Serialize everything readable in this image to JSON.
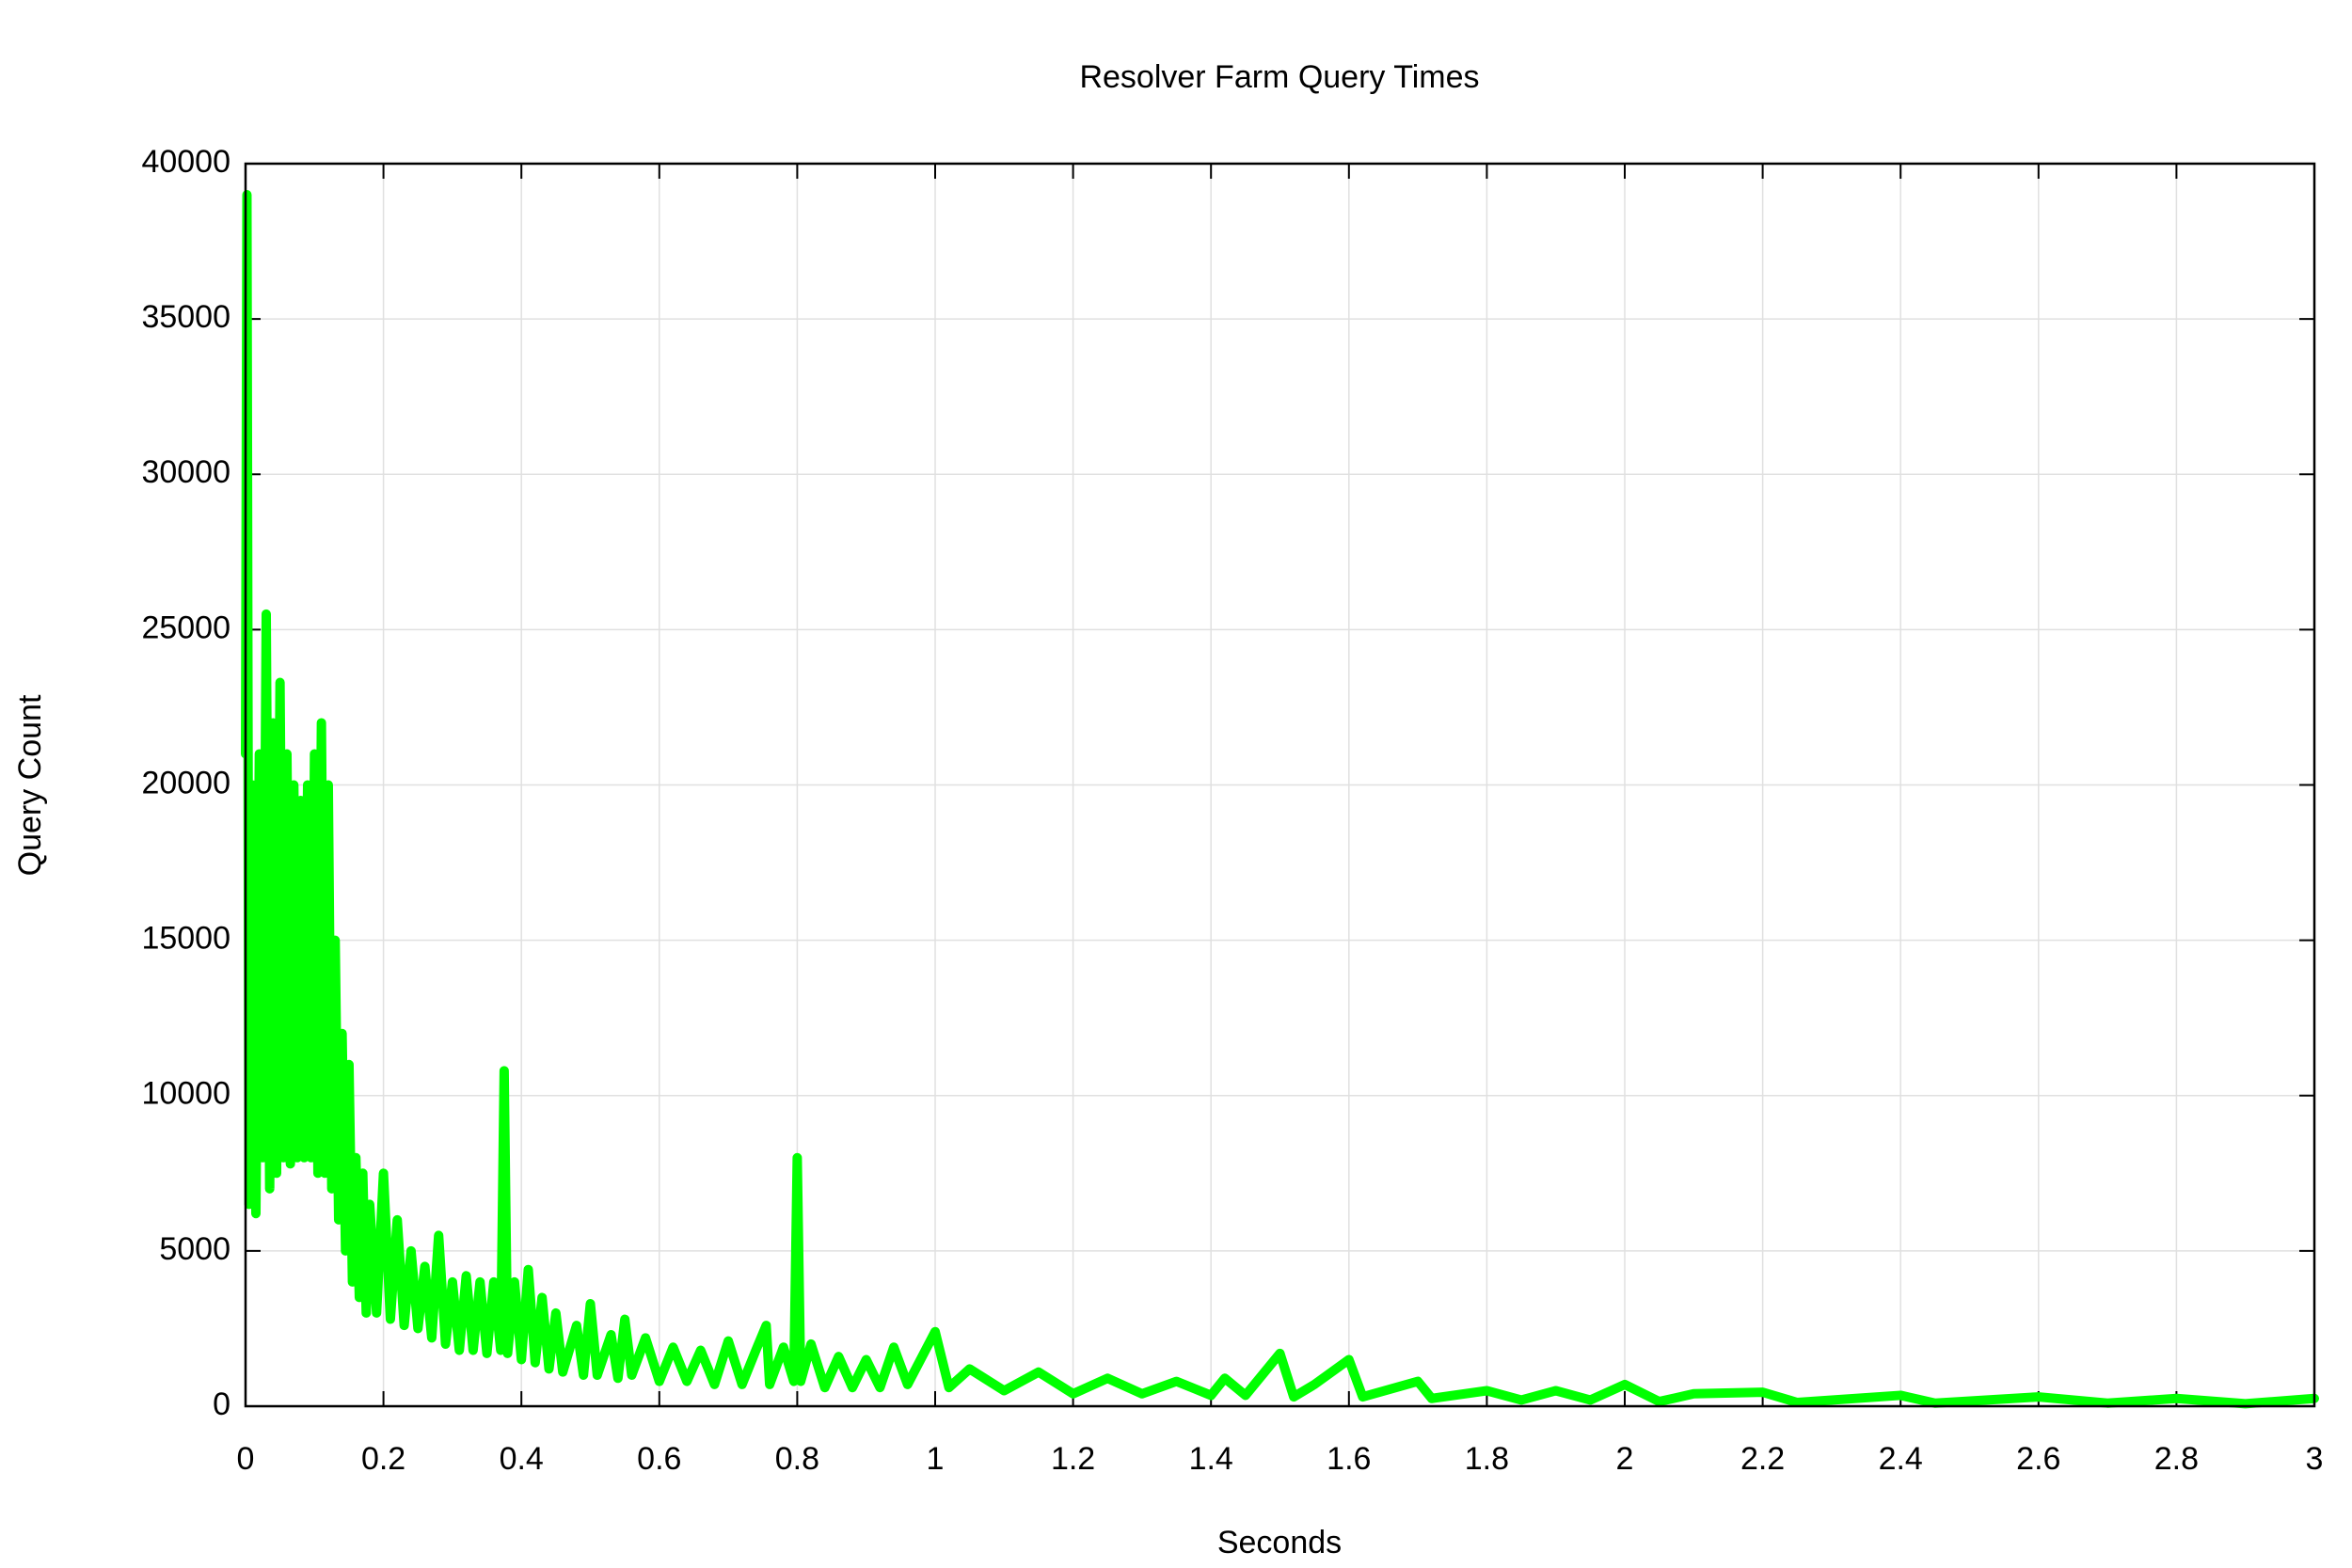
{
  "chart_data": {
    "type": "line",
    "title": "Resolver Farm Query Times",
    "x_label": "Seconds",
    "y_label": "Query Count",
    "x": [
      0,
      0.002,
      0.005,
      0.01,
      0.015,
      0.02,
      0.025,
      0.03,
      0.035,
      0.04,
      0.045,
      0.05,
      0.055,
      0.06,
      0.065,
      0.07,
      0.075,
      0.08,
      0.085,
      0.09,
      0.095,
      0.1,
      0.105,
      0.11,
      0.115,
      0.12,
      0.125,
      0.13,
      0.135,
      0.14,
      0.145,
      0.15,
      0.155,
      0.16,
      0.165,
      0.17,
      0.175,
      0.18,
      0.19,
      0.2,
      0.21,
      0.22,
      0.23,
      0.24,
      0.25,
      0.26,
      0.27,
      0.28,
      0.29,
      0.3,
      0.31,
      0.32,
      0.33,
      0.34,
      0.35,
      0.36,
      0.37,
      0.375,
      0.38,
      0.39,
      0.4,
      0.41,
      0.42,
      0.43,
      0.44,
      0.45,
      0.46,
      0.48,
      0.49,
      0.5,
      0.51,
      0.53,
      0.54,
      0.55,
      0.56,
      0.58,
      0.6,
      0.62,
      0.64,
      0.66,
      0.68,
      0.7,
      0.72,
      0.74,
      0.755,
      0.76,
      0.78,
      0.795,
      0.8,
      0.805,
      0.82,
      0.84,
      0.86,
      0.88,
      0.9,
      0.92,
      0.94,
      0.96,
      1.0,
      1.02,
      1.05,
      1.1,
      1.15,
      1.2,
      1.25,
      1.3,
      1.35,
      1.4,
      1.42,
      1.45,
      1.5,
      1.52,
      1.55,
      1.6,
      1.62,
      1.7,
      1.72,
      1.8,
      1.85,
      1.9,
      1.95,
      2.0,
      2.05,
      2.1,
      2.2,
      2.25,
      2.4,
      2.45,
      2.6,
      2.7,
      2.8,
      2.9,
      3.0
    ],
    "values": [
      21000,
      39000,
      6500,
      20000,
      6200,
      21000,
      8000,
      25500,
      7000,
      22000,
      7500,
      23300,
      8000,
      21000,
      7800,
      20000,
      8000,
      19500,
      8000,
      20000,
      8000,
      21000,
      7500,
      22000,
      7500,
      20000,
      7000,
      15000,
      6000,
      12000,
      5000,
      11000,
      4000,
      8000,
      3500,
      7500,
      3000,
      6500,
      3000,
      7500,
      2800,
      6000,
      2600,
      5000,
      2500,
      4500,
      2200,
      5500,
      2000,
      4000,
      1800,
      4200,
      1800,
      4000,
      1700,
      4000,
      1800,
      10800,
      1700,
      4000,
      1500,
      4400,
      1400,
      3500,
      1200,
      3000,
      1100,
      2600,
      1000,
      3300,
      1000,
      2300,
      900,
      2800,
      1000,
      2200,
      800,
      1900,
      800,
      1800,
      700,
      2100,
      700,
      1800,
      2600,
      700,
      1900,
      800,
      8000,
      800,
      2000,
      600,
      1600,
      600,
      1500,
      600,
      1900,
      700,
      2400,
      600,
      1200,
      500,
      1100,
      400,
      900,
      400,
      800,
      350,
      900,
      350,
      1700,
      300,
      700,
      1500,
      300,
      800,
      250,
      500,
      200,
      500,
      200,
      700,
      150,
      400,
      450,
      120,
      350,
      100,
      300,
      100,
      250,
      80,
      250
    ],
    "color": "#00ff00",
    "xlim": [
      0,
      3
    ],
    "xticks": [
      0,
      0.2,
      0.4,
      0.6,
      0.8,
      1,
      1.2,
      1.4,
      1.6,
      1.8,
      2,
      2.2,
      2.4,
      2.6,
      2.8,
      3
    ],
    "ylim": [
      0,
      40000
    ],
    "yticks": [
      0,
      5000,
      10000,
      15000,
      20000,
      25000,
      30000,
      35000,
      40000
    ],
    "grid": true
  }
}
